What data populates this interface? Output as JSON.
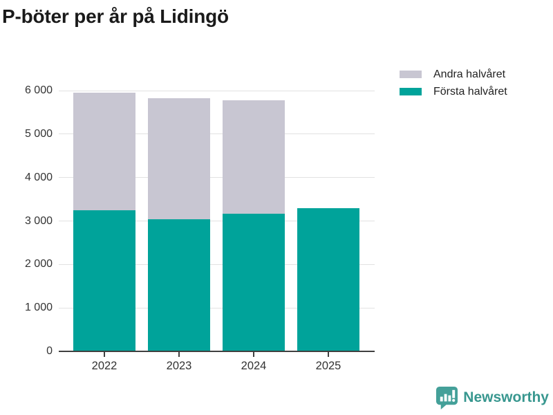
{
  "title": "P-böter per år på Lidingö",
  "legend": [
    {
      "label": "Andra halvåret",
      "color": "#c8c6d2"
    },
    {
      "label": "Första halvåret",
      "color": "#00a39a"
    }
  ],
  "chart_data": {
    "type": "bar",
    "stacked": true,
    "title": "P-böter per år på Lidingö",
    "categories": [
      "2022",
      "2023",
      "2024",
      "2025"
    ],
    "series": [
      {
        "name": "Första halvåret",
        "color": "#00a39a",
        "values": [
          3250,
          3040,
          3170,
          3290
        ]
      },
      {
        "name": "Andra halvåret",
        "color": "#c8c6d2",
        "values": [
          2700,
          2790,
          2610,
          0
        ]
      }
    ],
    "totals": [
      5950,
      5830,
      5780,
      3290
    ],
    "xlabel": "",
    "ylabel": "",
    "ylim": [
      0,
      6000
    ],
    "ytick_values": [
      0,
      1000,
      2000,
      3000,
      4000,
      5000,
      6000
    ],
    "ytick_labels": [
      "0",
      "1 000",
      "2 000",
      "3 000",
      "4 000",
      "5 000",
      "6 000"
    ],
    "grid": true,
    "legend_position": "top-right"
  },
  "colors": {
    "first_half": "#00a39a",
    "second_half": "#c8c6d2",
    "gridline": "#e2e2e2",
    "axis": "#404040",
    "text": "#333333",
    "title": "#1a1a1a",
    "brand": "#38978f"
  },
  "branding": {
    "name": "Newsworthy",
    "icon": "bar-chart-speech-bubble-icon"
  }
}
